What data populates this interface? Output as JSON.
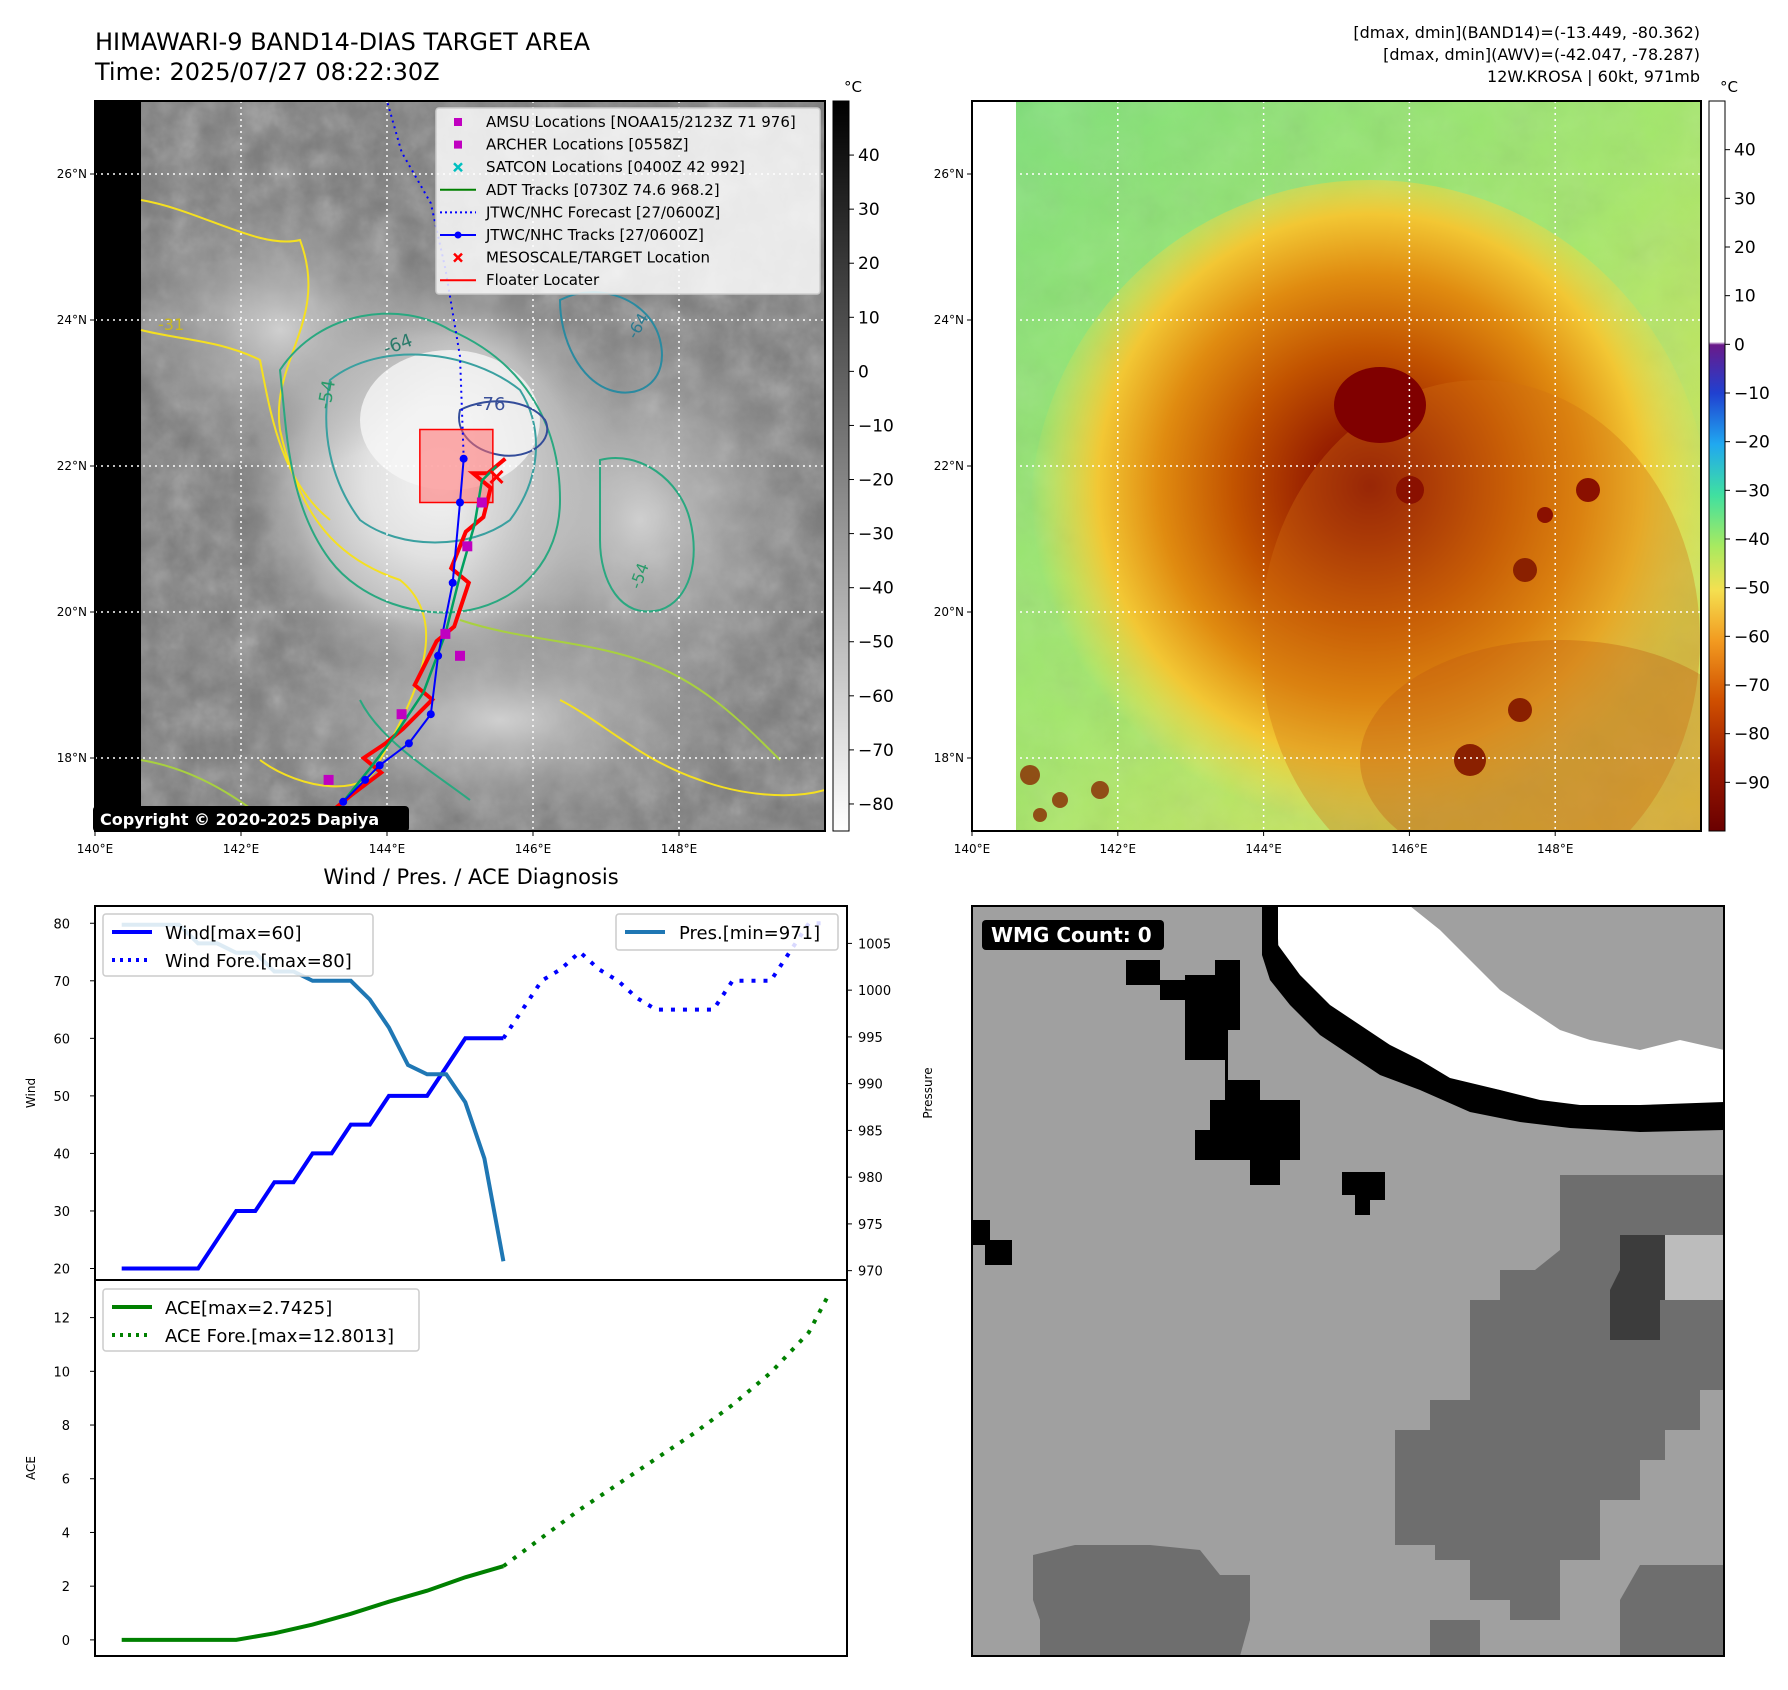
{
  "header": {
    "title": "HIMAWARI-9 BAND14-DIAS TARGET AREA",
    "time": "Time: 2025/07/27 08:22:30Z",
    "stats_line1": "[dmax, dmin](BAND14)=(-13.449, -80.362)",
    "stats_line2": "[dmax, dmin](AWV)=(-42.047, -78.287)",
    "stats_line3": "12W.KROSA | 60kt, 971mb"
  },
  "maps": {
    "lon_ticks": [
      "140°E",
      "142°E",
      "144°E",
      "146°E",
      "148°E"
    ],
    "lat_ticks": [
      "26°N",
      "24°N",
      "22°N",
      "20°N",
      "18°N"
    ],
    "lon_values": [
      140,
      142,
      144,
      146,
      148
    ],
    "lat_values": [
      26,
      24,
      22,
      20,
      18
    ],
    "lon_range": [
      140,
      150
    ],
    "lat_range": [
      17,
      27
    ],
    "copyright": "Copyright © 2020-2025 Dapiya",
    "contour_labels": [
      "-31",
      "-64",
      "-54",
      "-76",
      "-64",
      "-54"
    ],
    "band14_colorbar": {
      "unit": "°C",
      "ticks": [
        "40",
        "30",
        "20",
        "10",
        "0",
        "−10",
        "−20",
        "−30",
        "−40",
        "−50",
        "−60",
        "−70",
        "−80"
      ],
      "tick_values": [
        40,
        30,
        20,
        10,
        0,
        -10,
        -20,
        -30,
        -40,
        -50,
        -60,
        -70,
        -80
      ],
      "range": [
        -85,
        50
      ]
    },
    "awv_colorbar": {
      "unit": "°C",
      "ticks": [
        "40",
        "30",
        "20",
        "10",
        "0",
        "−10",
        "−20",
        "−30",
        "−40",
        "−50",
        "−60",
        "−70",
        "−80",
        "−90"
      ],
      "tick_values": [
        40,
        30,
        20,
        10,
        0,
        -10,
        -20,
        -30,
        -40,
        -50,
        -60,
        -70,
        -80,
        -90
      ],
      "range": [
        -100,
        50
      ]
    },
    "legend": [
      {
        "label": "AMSU Locations [NOAA15/2123Z 71 976]",
        "marker": "square",
        "color": "#c000c0"
      },
      {
        "label": "ARCHER Locations [0558Z]",
        "marker": "square",
        "color": "#c000c0"
      },
      {
        "label": "SATCON Locations [0400Z 42 992]",
        "marker": "x",
        "color": "#00c0c0"
      },
      {
        "label": "ADT Tracks [0730Z 74.6 968.2]",
        "marker": "line",
        "color": "#008000"
      },
      {
        "label": "JTWC/NHC Forecast [27/0600Z]",
        "marker": "dotted",
        "color": "#0000ff"
      },
      {
        "label": "JTWC/NHC Tracks [27/0600Z]",
        "marker": "line-dot",
        "color": "#0000ff"
      },
      {
        "label": "MESOSCALE/TARGET Location",
        "marker": "x",
        "color": "#ff0000"
      },
      {
        "label": "Floater Locater",
        "marker": "line",
        "color": "#ff0000"
      }
    ],
    "jtwc_track": [
      [
        143.4,
        17.4
      ],
      [
        143.7,
        17.7
      ],
      [
        143.9,
        17.9
      ],
      [
        144.3,
        18.2
      ],
      [
        144.6,
        18.6
      ],
      [
        144.7,
        19.4
      ],
      [
        144.9,
        20.4
      ],
      [
        145.0,
        21.5
      ],
      [
        145.05,
        22.1
      ]
    ],
    "jtwc_forecast": [
      [
        145.05,
        22.1
      ],
      [
        145.0,
        23.5
      ],
      [
        144.8,
        24.7
      ],
      [
        144.6,
        25.6
      ],
      [
        144.2,
        26.3
      ],
      [
        144.0,
        27.0
      ]
    ],
    "adt_track": [
      [
        143.4,
        17.4
      ],
      [
        143.8,
        17.9
      ],
      [
        144.1,
        18.3
      ],
      [
        144.5,
        18.9
      ],
      [
        144.8,
        19.7
      ],
      [
        145.0,
        20.5
      ],
      [
        145.2,
        21.2
      ],
      [
        145.3,
        21.8
      ],
      [
        145.5,
        22.0
      ]
    ],
    "floater_box": {
      "lon0": 144.45,
      "lon1": 145.45,
      "lat0": 21.5,
      "lat1": 22.5
    },
    "target": [
      145.5,
      21.85
    ],
    "archer": [
      [
        145.3,
        21.5
      ],
      [
        145.1,
        20.9
      ],
      [
        144.8,
        19.7
      ],
      [
        145.0,
        19.4
      ],
      [
        144.2,
        18.6
      ],
      [
        143.2,
        17.7
      ]
    ]
  },
  "diagnosis": {
    "title": "Wind / Pres. / ACE Diagnosis",
    "wind_ylabel": "Wind",
    "pres_ylabel": "Pressure",
    "ace_ylabel": "ACE",
    "wind_ticks": [
      20,
      30,
      40,
      50,
      60,
      70,
      80
    ],
    "pres_ticks": [
      970,
      975,
      980,
      985,
      990,
      995,
      1000,
      1005
    ],
    "ace_ticks": [
      0,
      2,
      4,
      6,
      8,
      10,
      12
    ],
    "legend_wind": "Wind[max=60]",
    "legend_wind_fore": "Wind Fore.[max=80]",
    "legend_pres": "Pres.[min=971]",
    "legend_ace": "ACE[max=2.7425]",
    "legend_ace_fore": "ACE Fore.[max=12.8013]"
  },
  "chart_data": [
    {
      "type": "line",
      "title": "Wind / Pres. / ACE Diagnosis",
      "ylabel": "Wind",
      "y2label": "Pressure",
      "ylim": [
        18,
        83
      ],
      "y2lim": [
        969,
        1009
      ],
      "xlim": [
        -0.7,
        19
      ],
      "series": [
        {
          "name": "Wind[max=60]",
          "axis": "left",
          "style": "solid",
          "color": "#0000ff",
          "x": [
            0,
            1,
            2,
            2.5,
            3,
            3.5,
            4,
            4.5,
            5,
            5.5,
            6,
            6.5,
            7,
            7.5,
            8,
            8.5,
            9,
            9.5,
            10
          ],
          "values": [
            20,
            20,
            20,
            25,
            30,
            30,
            35,
            35,
            40,
            40,
            45,
            45,
            50,
            50,
            50,
            55,
            60,
            60,
            60
          ]
        },
        {
          "name": "Wind Fore.[max=80]",
          "axis": "left",
          "style": "dotted",
          "color": "#0000ff",
          "x": [
            10,
            10.5,
            11,
            11.5,
            12,
            12.5,
            13,
            13.5,
            14,
            14.5,
            15,
            15.5,
            16,
            16.5,
            17,
            17.5,
            18,
            18.5
          ],
          "values": [
            60,
            65,
            70,
            72,
            75,
            72,
            70,
            67,
            65,
            65,
            65,
            65,
            70,
            70,
            70,
            75,
            80,
            80
          ]
        },
        {
          "name": "Pres.[min=971]",
          "axis": "right",
          "style": "solid",
          "color": "#1f77b4",
          "x": [
            0,
            1,
            1.5,
            2,
            2.5,
            3,
            3.5,
            4,
            4.5,
            5,
            5.5,
            6,
            6.5,
            7,
            7.5,
            8,
            8.5,
            9,
            9.5,
            10
          ],
          "values": [
            1007,
            1007,
            1007,
            1005,
            1005,
            1004,
            1004,
            1002,
            1002,
            1001,
            1001,
            1001,
            999,
            996,
            992,
            991,
            991,
            988,
            982,
            971
          ]
        }
      ]
    },
    {
      "type": "line",
      "ylabel": "ACE",
      "ylim": [
        -0.6,
        13.4
      ],
      "xlim": [
        -0.7,
        19
      ],
      "series": [
        {
          "name": "ACE[max=2.7425]",
          "style": "solid",
          "color": "#008000",
          "x": [
            0,
            1,
            2,
            3,
            4,
            5,
            6,
            7,
            8,
            9,
            10
          ],
          "values": [
            0,
            0,
            0,
            0,
            0.245,
            0.57,
            0.97,
            1.42,
            1.83,
            2.33,
            2.7425
          ]
        },
        {
          "name": "ACE Fore.[max=12.8013]",
          "style": "dotted",
          "color": "#008000",
          "x": [
            10,
            11,
            12,
            13,
            14,
            15,
            16,
            17,
            18,
            18.5
          ],
          "values": [
            2.7425,
            3.8,
            4.85,
            5.8,
            6.75,
            7.7,
            8.75,
            9.95,
            11.45,
            12.8013
          ]
        }
      ]
    }
  ],
  "wmg": {
    "label": "WMG Count: 0"
  }
}
